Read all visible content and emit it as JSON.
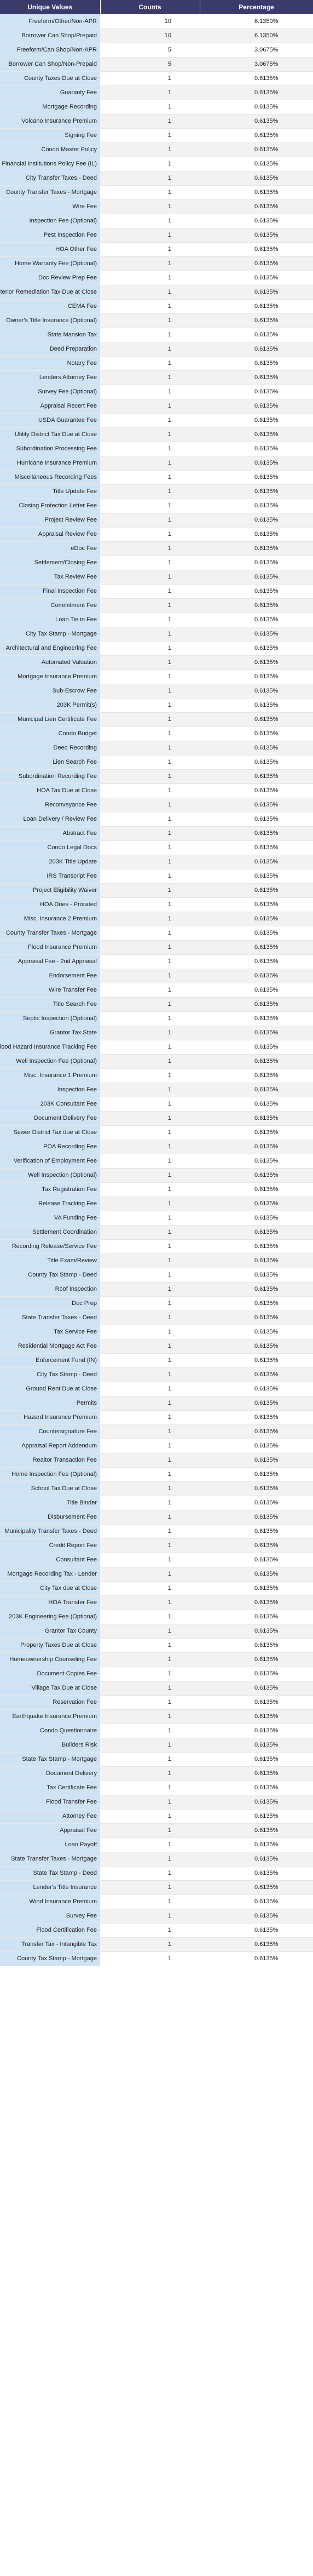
{
  "headers": {
    "unique_values": "Unique Values",
    "counts": "Counts",
    "percentage": "Percentage"
  },
  "rows": [
    {
      "label": "Freeform/Other/Non-APR",
      "count": "10",
      "pct": "6.1350%"
    },
    {
      "label": "Borrower Can Shop/Prepaid",
      "count": "10",
      "pct": "6.1350%"
    },
    {
      "label": "Freeform/Can Shop/Non-APR",
      "count": "5",
      "pct": "3.0675%"
    },
    {
      "label": "Borrower Can Shop/Non-Prepaid",
      "count": "5",
      "pct": "3.0675%"
    },
    {
      "label": "County Taxes Due at Close",
      "count": "1",
      "pct": "0.6135%"
    },
    {
      "label": "Guaranty Fee",
      "count": "1",
      "pct": "0.6135%"
    },
    {
      "label": "Mortgage Recording",
      "count": "1",
      "pct": "0.6135%"
    },
    {
      "label": "Volcano Insurance Premium",
      "count": "1",
      "pct": "0.6135%"
    },
    {
      "label": "Signing Fee",
      "count": "1",
      "pct": "0.6135%"
    },
    {
      "label": "Condo Master Policy",
      "count": "1",
      "pct": "0.6135%"
    },
    {
      "label": "Financial Institutions Policy Fee (IL)",
      "count": "1",
      "pct": "0.6135%"
    },
    {
      "label": "City Transfer Taxes - Deed",
      "count": "1",
      "pct": "0.6135%"
    },
    {
      "label": "County Transfer Taxes - Mortgage",
      "count": "1",
      "pct": "0.6135%"
    },
    {
      "label": "Wire Fee",
      "count": "1",
      "pct": "0.6135%"
    },
    {
      "label": "Inspection Fee (Optional)",
      "count": "1",
      "pct": "0.6135%"
    },
    {
      "label": "Pest Inspection Fee",
      "count": "1",
      "pct": "0.6135%"
    },
    {
      "label": "HOA Other Fee",
      "count": "1",
      "pct": "0.6135%"
    },
    {
      "label": "Home Warranty Fee (Optional)",
      "count": "1",
      "pct": "0.6135%"
    },
    {
      "label": "Doc Review Prep Fee",
      "count": "1",
      "pct": "0.6135%"
    },
    {
      "label": "Dwelling Interior Remediation Tax Due at Close",
      "count": "1",
      "pct": "0.6135%"
    },
    {
      "label": "CEMA Fee",
      "count": "1",
      "pct": "0.6135%"
    },
    {
      "label": "Owner's Title Insurance (Optional)",
      "count": "1",
      "pct": "0.6135%"
    },
    {
      "label": "State Mansion Tax",
      "count": "1",
      "pct": "0.6135%"
    },
    {
      "label": "Deed Preparation",
      "count": "1",
      "pct": "0.6135%"
    },
    {
      "label": "Notary Fee",
      "count": "1",
      "pct": "0.6135%"
    },
    {
      "label": "Lenders Attorney Fee",
      "count": "1",
      "pct": "0.6135%"
    },
    {
      "label": "Survey Fee (Optional)",
      "count": "1",
      "pct": "0.6135%"
    },
    {
      "label": "Appraisal Recert Fee",
      "count": "1",
      "pct": "0.6135%"
    },
    {
      "label": "USDA Guarantee Fee",
      "count": "1",
      "pct": "0.6135%"
    },
    {
      "label": "Utility District Tax Due at Close",
      "count": "1",
      "pct": "0.6135%"
    },
    {
      "label": "Subordination Processing Fee",
      "count": "1",
      "pct": "0.6135%"
    },
    {
      "label": "Hurricane Insurance Premium",
      "count": "1",
      "pct": "0.6135%"
    },
    {
      "label": "Miscellaneous Recording Fees",
      "count": "1",
      "pct": "0.6135%"
    },
    {
      "label": "Title Update Fee",
      "count": "1",
      "pct": "0.6135%"
    },
    {
      "label": "Closing Protection Letter Fee",
      "count": "1",
      "pct": "0.6135%"
    },
    {
      "label": "Project Review Fee",
      "count": "1",
      "pct": "0.6135%"
    },
    {
      "label": "Appraisal Review Fee",
      "count": "1",
      "pct": "0.6135%"
    },
    {
      "label": "eDoc Fee",
      "count": "1",
      "pct": "0.6135%"
    },
    {
      "label": "Settlement/Closing Fee",
      "count": "1",
      "pct": "0.6135%"
    },
    {
      "label": "Tax Review Fee",
      "count": "1",
      "pct": "0.6135%"
    },
    {
      "label": "Final Inspection Fee",
      "count": "1",
      "pct": "0.6135%"
    },
    {
      "label": "Commitment Fee",
      "count": "1",
      "pct": "0.6135%"
    },
    {
      "label": "Loan Tie in Fee",
      "count": "1",
      "pct": "0.6135%"
    },
    {
      "label": "City Tax Stamp - Mortgage",
      "count": "1",
      "pct": "0.6135%"
    },
    {
      "label": "Architectural and Engineering Fee",
      "count": "1",
      "pct": "0.6135%"
    },
    {
      "label": "Automated Valuation",
      "count": "1",
      "pct": "0.6135%"
    },
    {
      "label": "Mortgage Insurance Premium",
      "count": "1",
      "pct": "0.6135%"
    },
    {
      "label": "Sub-Escrow Fee",
      "count": "1",
      "pct": "0.6135%"
    },
    {
      "label": "203K Permit(s)",
      "count": "1",
      "pct": "0.6135%"
    },
    {
      "label": "Municipal Lien Certificate Fee",
      "count": "1",
      "pct": "0.6135%"
    },
    {
      "label": "Condo Budget",
      "count": "1",
      "pct": "0.6135%"
    },
    {
      "label": "Deed Recording",
      "count": "1",
      "pct": "0.6135%"
    },
    {
      "label": "Lien Search Fee",
      "count": "1",
      "pct": "0.6135%"
    },
    {
      "label": "Subordination Recording Fee",
      "count": "1",
      "pct": "0.6135%"
    },
    {
      "label": "HOA Tax Due at Close",
      "count": "1",
      "pct": "0.6135%"
    },
    {
      "label": "Reconveyance Fee",
      "count": "1",
      "pct": "0.6135%"
    },
    {
      "label": "Loan Delivery / Review Fee",
      "count": "1",
      "pct": "0.6135%"
    },
    {
      "label": "Abstract Fee",
      "count": "1",
      "pct": "0.6135%"
    },
    {
      "label": "Condo Legal Docs",
      "count": "1",
      "pct": "0.6135%"
    },
    {
      "label": "203K Title Update",
      "count": "1",
      "pct": "0.6135%"
    },
    {
      "label": "IRS Transcript Fee",
      "count": "1",
      "pct": "0.6135%"
    },
    {
      "label": "Project Eligibility Waiver",
      "count": "1",
      "pct": "0.6135%"
    },
    {
      "label": "HOA Dues - Prorated",
      "count": "1",
      "pct": "0.6135%"
    },
    {
      "label": "Misc. Insurance 2 Premium",
      "count": "1",
      "pct": "0.6135%"
    },
    {
      "label": "County Transfer Taxes - Mortgage",
      "count": "1",
      "pct": "0.6135%"
    },
    {
      "label": "Flood Insurance Premium",
      "count": "1",
      "pct": "0.6135%"
    },
    {
      "label": "Appraisal Fee - 2nd Appraisal",
      "count": "1",
      "pct": "0.6135%"
    },
    {
      "label": "Endorsement Fee",
      "count": "1",
      "pct": "0.6135%"
    },
    {
      "label": "Wire Transfer Fee",
      "count": "1",
      "pct": "0.6135%"
    },
    {
      "label": "Title Search Fee",
      "count": "1",
      "pct": "0.6135%"
    },
    {
      "label": "Septic Inspection (Optional)",
      "count": "1",
      "pct": "0.6135%"
    },
    {
      "label": "Grantor Tax State",
      "count": "1",
      "pct": "0.6135%"
    },
    {
      "label": "Flood Hazard Insurance Tracking Fee",
      "count": "1",
      "pct": "0.6135%"
    },
    {
      "label": "Well Inspection Fee (Optional)",
      "count": "1",
      "pct": "0.6135%"
    },
    {
      "label": "Misc. Insurance 1 Premium",
      "count": "1",
      "pct": "0.6135%"
    },
    {
      "label": "Inspection Fee",
      "count": "1",
      "pct": "0.6135%"
    },
    {
      "label": "203K Consultant Fee",
      "count": "1",
      "pct": "0.6135%"
    },
    {
      "label": "Document Delivery Fee",
      "count": "1",
      "pct": "0.6135%"
    },
    {
      "label": "Sewer District Tax due at Close",
      "count": "1",
      "pct": "0.6135%"
    },
    {
      "label": "POA Recording Fee",
      "count": "1",
      "pct": "0.6135%"
    },
    {
      "label": "Verification of Employment Fee",
      "count": "1",
      "pct": "0.6135%"
    },
    {
      "label": "Well Inspection (Optional)",
      "count": "1",
      "pct": "0.6135%"
    },
    {
      "label": "Tax Registration Fee",
      "count": "1",
      "pct": "0.6135%"
    },
    {
      "label": "Release Tracking Fee",
      "count": "1",
      "pct": "0.6135%"
    },
    {
      "label": "VA Funding Fee",
      "count": "1",
      "pct": "0.6135%"
    },
    {
      "label": "Settlement Coordination",
      "count": "1",
      "pct": "0.6135%"
    },
    {
      "label": "Recording Release/Service Fee",
      "count": "1",
      "pct": "0.6135%"
    },
    {
      "label": "Title Exam/Review",
      "count": "1",
      "pct": "0.6135%"
    },
    {
      "label": "County Tax Stamp - Deed",
      "count": "1",
      "pct": "0.6135%"
    },
    {
      "label": "Roof Inspection",
      "count": "1",
      "pct": "0.6135%"
    },
    {
      "label": "Doc Prep",
      "count": "1",
      "pct": "0.6135%"
    },
    {
      "label": "State Transfer Taxes - Deed",
      "count": "1",
      "pct": "0.6135%"
    },
    {
      "label": "Tax Service Fee",
      "count": "1",
      "pct": "0.6135%"
    },
    {
      "label": "Residential Mortgage Act Fee",
      "count": "1",
      "pct": "0.6135%"
    },
    {
      "label": "Enforcement Fund (IN)",
      "count": "1",
      "pct": "0.6135%"
    },
    {
      "label": "City Tax Stamp - Deed",
      "count": "1",
      "pct": "0.6135%"
    },
    {
      "label": "Ground Rent Due at Close",
      "count": "1",
      "pct": "0.6135%"
    },
    {
      "label": "Permits",
      "count": "1",
      "pct": "0.6135%"
    },
    {
      "label": "Hazard Insurance Premium",
      "count": "1",
      "pct": "0.6135%"
    },
    {
      "label": "Countersignature Fee",
      "count": "1",
      "pct": "0.6135%"
    },
    {
      "label": "Appraisal Report Addendum",
      "count": "1",
      "pct": "0.6135%"
    },
    {
      "label": "Realtor Transaction Fee",
      "count": "1",
      "pct": "0.6135%"
    },
    {
      "label": "Home Inspection Fee (Optional)",
      "count": "1",
      "pct": "0.6135%"
    },
    {
      "label": "School Tax Due at Close",
      "count": "1",
      "pct": "0.6135%"
    },
    {
      "label": "Title Binder",
      "count": "1",
      "pct": "0.6135%"
    },
    {
      "label": "Disbursement Fee",
      "count": "1",
      "pct": "0.6135%"
    },
    {
      "label": "Municipality Transfer Taxes - Deed",
      "count": "1",
      "pct": "0.6135%"
    },
    {
      "label": "Credit Report Fee",
      "count": "1",
      "pct": "0.6135%"
    },
    {
      "label": "Consultant Fee",
      "count": "1",
      "pct": "0.6135%"
    },
    {
      "label": "Mortgage Recording Tax - Lender",
      "count": "1",
      "pct": "0.6135%"
    },
    {
      "label": "City Tax due at Close",
      "count": "1",
      "pct": "0.6135%"
    },
    {
      "label": "HOA Transfer Fee",
      "count": "1",
      "pct": "0.6135%"
    },
    {
      "label": "203K Engineering Fee (Optional)",
      "count": "1",
      "pct": "0.6135%"
    },
    {
      "label": "Grantor Tax County",
      "count": "1",
      "pct": "0.6135%"
    },
    {
      "label": "Property Taxes Due at Close",
      "count": "1",
      "pct": "0.6135%"
    },
    {
      "label": "Homeownership Counseling Fee",
      "count": "1",
      "pct": "0.6135%"
    },
    {
      "label": "Document Copies Fee",
      "count": "1",
      "pct": "0.6135%"
    },
    {
      "label": "Village Tax Due at Close",
      "count": "1",
      "pct": "0.6135%"
    },
    {
      "label": "Reservation Fee",
      "count": "1",
      "pct": "0.6135%"
    },
    {
      "label": "Earthquake Insurance Premium",
      "count": "1",
      "pct": "0.6135%"
    },
    {
      "label": "Condo Questionnaire",
      "count": "1",
      "pct": "0.6135%"
    },
    {
      "label": "Builders Risk",
      "count": "1",
      "pct": "0.6135%"
    },
    {
      "label": "State Tax Stamp - Mortgage",
      "count": "1",
      "pct": "0.6135%"
    },
    {
      "label": "Document Delivery",
      "count": "1",
      "pct": "0.6135%"
    },
    {
      "label": "Tax Certificate Fee",
      "count": "1",
      "pct": "0.6135%"
    },
    {
      "label": "Flood Transfer Fee",
      "count": "1",
      "pct": "0.6135%"
    },
    {
      "label": "Attorney Fee",
      "count": "1",
      "pct": "0.6135%"
    },
    {
      "label": "Appraisal Fee",
      "count": "1",
      "pct": "0.6135%"
    },
    {
      "label": "Loan Payoff",
      "count": "1",
      "pct": "0.6135%"
    },
    {
      "label": "State Transfer Taxes - Mortgage",
      "count": "1",
      "pct": "0.6135%"
    },
    {
      "label": "State Tax Stamp - Deed",
      "count": "1",
      "pct": "0.6135%"
    },
    {
      "label": "Lender's Title Insurance",
      "count": "1",
      "pct": "0.6135%"
    },
    {
      "label": "Wind Insurance Premium",
      "count": "1",
      "pct": "0.6135%"
    },
    {
      "label": "Survey Fee",
      "count": "1",
      "pct": "0.6135%"
    },
    {
      "label": "Flood Certification Fee",
      "count": "1",
      "pct": "0.6135%"
    },
    {
      "label": "Transfer Tax - Intangible Tax",
      "count": "1",
      "pct": "0.6135%"
    },
    {
      "label": "County Tax Stamp - Mortgage",
      "count": "1",
      "pct": "0.6135%"
    }
  ]
}
